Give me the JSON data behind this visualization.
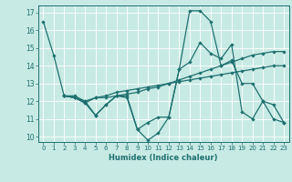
{
  "xlabel": "Humidex (Indice chaleur)",
  "xlim": [
    -0.5,
    23.5
  ],
  "ylim": [
    9.7,
    17.4
  ],
  "yticks": [
    10,
    11,
    12,
    13,
    14,
    15,
    16,
    17
  ],
  "xticks": [
    0,
    1,
    2,
    3,
    4,
    5,
    6,
    7,
    8,
    9,
    10,
    11,
    12,
    13,
    14,
    15,
    16,
    17,
    18,
    19,
    20,
    21,
    22,
    23
  ],
  "bg_color": "#c8eae4",
  "line_color": "#1e7070",
  "series1_x": [
    0,
    1,
    2,
    3,
    4,
    5,
    6,
    7,
    8,
    9,
    10,
    11,
    12,
    13,
    14,
    15,
    16,
    17,
    18,
    19,
    20,
    21,
    22,
    23
  ],
  "series1_y": [
    16.5,
    14.6,
    12.3,
    12.3,
    12.0,
    11.2,
    11.8,
    12.3,
    12.3,
    10.4,
    10.8,
    11.1,
    11.1,
    13.8,
    17.1,
    17.1,
    16.5,
    14.0,
    14.3,
    13.0,
    13.0,
    12.0,
    11.0,
    10.8
  ],
  "series2_x": [
    2,
    3,
    4,
    5,
    6,
    7,
    8,
    9,
    10,
    11,
    12,
    13,
    14,
    15,
    16,
    17,
    18,
    19,
    20,
    21,
    22,
    23
  ],
  "series2_y": [
    12.3,
    12.2,
    11.9,
    11.2,
    11.8,
    12.3,
    12.2,
    10.4,
    9.8,
    10.2,
    11.1,
    13.8,
    14.2,
    15.3,
    14.7,
    14.4,
    15.2,
    11.4,
    11.0,
    12.0,
    11.8,
    10.8
  ],
  "series3_x": [
    2,
    3,
    4,
    5,
    6,
    7,
    8,
    9,
    10,
    11,
    12,
    13,
    14,
    15,
    16,
    17,
    18,
    19,
    20,
    21,
    22,
    23
  ],
  "series3_y": [
    12.3,
    12.2,
    11.9,
    12.2,
    12.2,
    12.3,
    12.4,
    12.5,
    12.7,
    12.8,
    13.0,
    13.2,
    13.4,
    13.6,
    13.8,
    14.0,
    14.2,
    14.4,
    14.6,
    14.7,
    14.8,
    14.8
  ],
  "series4_x": [
    2,
    3,
    4,
    5,
    6,
    7,
    8,
    9,
    10,
    11,
    12,
    13,
    14,
    15,
    16,
    17,
    18,
    19,
    20,
    21,
    22,
    23
  ],
  "series4_y": [
    12.3,
    12.2,
    12.0,
    12.2,
    12.3,
    12.5,
    12.6,
    12.7,
    12.8,
    12.9,
    13.0,
    13.1,
    13.2,
    13.3,
    13.4,
    13.5,
    13.6,
    13.7,
    13.8,
    13.9,
    14.0,
    14.0
  ]
}
